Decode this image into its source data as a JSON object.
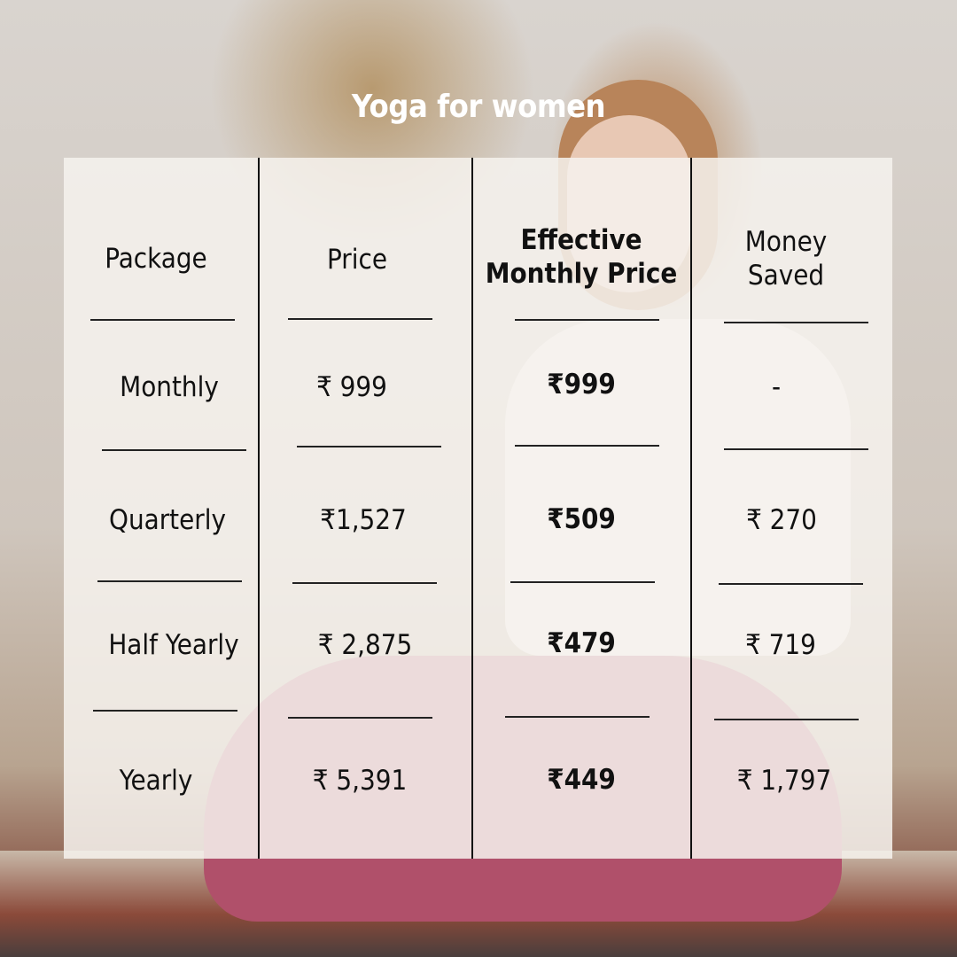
{
  "title": "Yoga for women",
  "headers": [
    "Package",
    "Price",
    "Effective Monthly Price",
    "Money Saved"
  ],
  "header_lines": {
    "effective": [
      "Effective",
      "Monthly Price"
    ],
    "saved": [
      "Money",
      "Saved"
    ]
  },
  "rows": [
    {
      "package": "Monthly",
      "price": "₹ 999",
      "effective": "₹999",
      "saved": "-"
    },
    {
      "package": "Quarterly",
      "price": "₹1,527",
      "effective": "₹509",
      "saved": "₹ 270"
    },
    {
      "package": "Half Yearly",
      "price": "₹ 2,875",
      "effective": "₹479",
      "saved": "₹ 719"
    },
    {
      "package": "Yearly",
      "price": "₹ 5,391",
      "effective": "₹449",
      "saved": "₹ 1,797"
    }
  ],
  "colors": {
    "title": "#ffffff",
    "panel": "#f6f2ee",
    "text": "#111111"
  }
}
